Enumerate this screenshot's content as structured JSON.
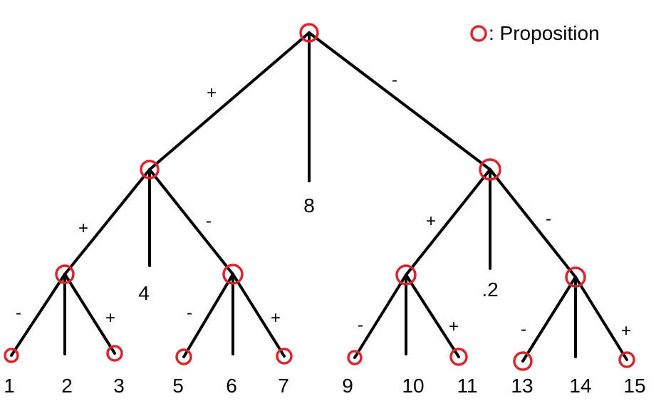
{
  "legend": {
    "label": ": Proposition",
    "color": "#d9262c"
  },
  "leaf_labels": {
    "n8": "8",
    "n4": "4",
    "n12": ".2",
    "n1": "1",
    "n2": "2",
    "n3": "3",
    "n5": "5",
    "n6": "6",
    "n7": "7",
    "n9": "9",
    "n10": "10",
    "n11": "11",
    "n13": "13",
    "n14": "14",
    "n15": "15"
  },
  "edge_signs": {
    "root_left": "+",
    "root_right": "-",
    "a_left": "+",
    "a_right": "-",
    "b_left": "+",
    "b_right": "-",
    "c_left": "-",
    "c_right": "+",
    "d_left": "-",
    "d_right": "+",
    "e_left": "-",
    "e_right": "+",
    "f_left": "-",
    "f_right": "+"
  }
}
